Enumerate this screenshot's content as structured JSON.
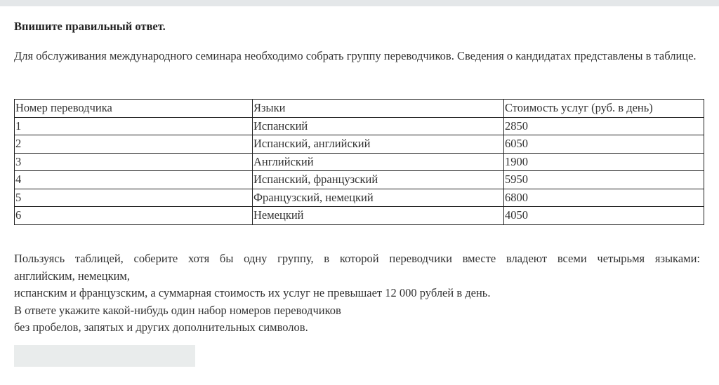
{
  "header": {
    "title": "Впишите правильный ответ."
  },
  "intro": "Для обслуживания международного семинара необходимо собрать группу переводчиков. Сведения о кандидатах представлены в таблице.",
  "table": {
    "headers": [
      "Номер переводчика",
      "Языки",
      "Стоимость услуг (руб. в день)"
    ],
    "rows": [
      [
        "1",
        "Испанский",
        "2850"
      ],
      [
        "2",
        "Испанский, английский",
        "6050"
      ],
      [
        "3",
        "Английский",
        "1900"
      ],
      [
        "4",
        "Испанский, французский",
        "5950"
      ],
      [
        "5",
        "Французский, немецкий",
        "6800"
      ],
      [
        "6",
        "Немецкий",
        "4050"
      ]
    ]
  },
  "task": {
    "lines": [
      "Пользуясь таблицей, соберите хотя бы одну группу, в которой переводчики вместе владеют всеми четырьмя языками:",
      "английским, немецким,",
      "испанским и французским, а суммарная стоимость их услуг не превышает 12 000 рублей в день.",
      "В ответе укажите какой-нибудь один набор номеров переводчиков",
      "без пробелов, запятых и других дополнительных символов."
    ]
  },
  "answer": {
    "value": "",
    "placeholder": ""
  }
}
